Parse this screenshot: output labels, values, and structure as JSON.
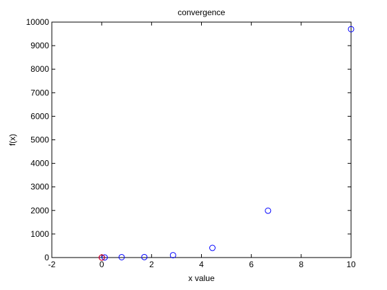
{
  "chart_data": {
    "type": "scatter",
    "title": "convergence",
    "xlabel": "x value",
    "ylabel": "f(x)",
    "xlim": [
      -2,
      10
    ],
    "ylim": [
      0,
      10000
    ],
    "x_ticks": [
      -2,
      0,
      2,
      4,
      6,
      8,
      10
    ],
    "y_ticks": [
      0,
      1000,
      2000,
      3000,
      4000,
      5000,
      6000,
      7000,
      8000,
      9000,
      10000
    ],
    "x_tick_labels": [
      "-2",
      "0",
      "2",
      "4",
      "6",
      "8",
      "10"
    ],
    "y_tick_labels": [
      "0",
      "1000",
      "2000",
      "3000",
      "4000",
      "5000",
      "6000",
      "7000",
      "8000",
      "9000",
      "10000"
    ],
    "grid": false,
    "marker": "circle-open",
    "colors": {
      "series": "#0000ff",
      "highlight": "#ff0000",
      "axes": "#000000",
      "background": "#ffffff"
    },
    "series": [
      {
        "points": [
          {
            "x": 10.0,
            "y": 9700
          },
          {
            "x": 6.67,
            "y": 1990
          },
          {
            "x": 4.44,
            "y": 410
          },
          {
            "x": 2.86,
            "y": 100
          },
          {
            "x": 1.71,
            "y": 20
          },
          {
            "x": 0.8,
            "y": 15
          },
          {
            "x": 0.12,
            "y": 5
          },
          {
            "x": 0.01,
            "y": 0
          }
        ]
      }
    ],
    "highlight_point": {
      "x": 0.0,
      "y": 0
    }
  }
}
